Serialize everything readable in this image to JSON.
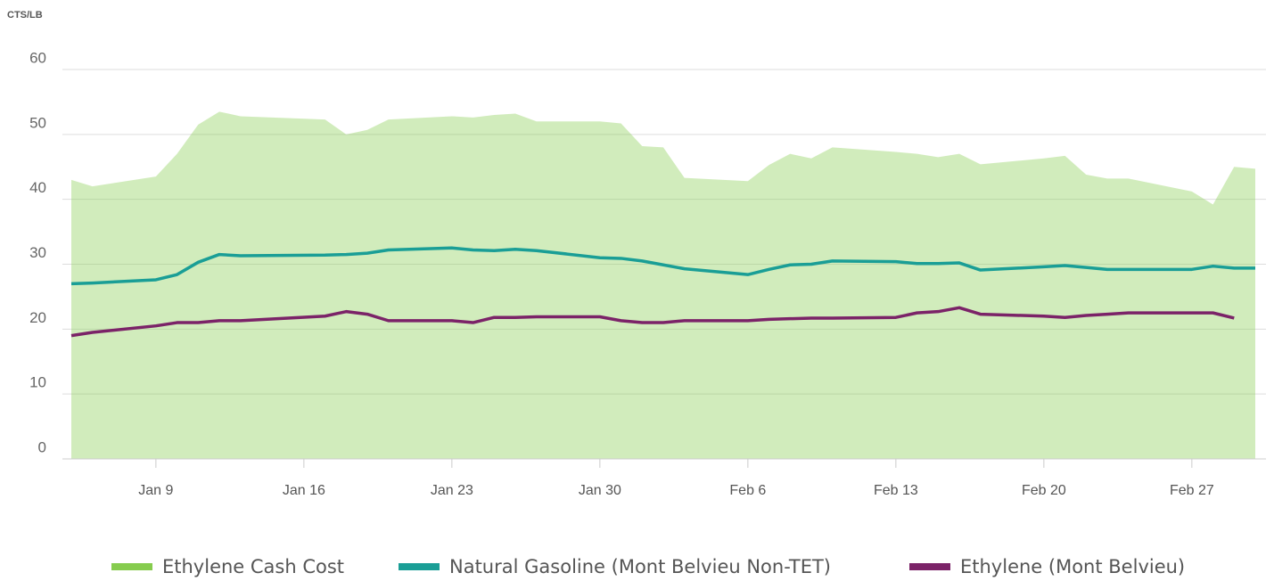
{
  "chart_data": {
    "type": "line",
    "y_label": "CTS/LB",
    "x": [
      "Jan 5",
      "Jan 6",
      "Jan 9",
      "Jan 10",
      "Jan 11",
      "Jan 12",
      "Jan 13",
      "Jan 17",
      "Jan 18",
      "Jan 19",
      "Jan 20",
      "Jan 23",
      "Jan 24",
      "Jan 25",
      "Jan 26",
      "Jan 27",
      "Jan 30",
      "Jan 31",
      "Feb 1",
      "Feb 2",
      "Feb 3",
      "Feb 6",
      "Feb 7",
      "Feb 8",
      "Feb 9",
      "Feb 10",
      "Feb 13",
      "Feb 14",
      "Feb 15",
      "Feb 16",
      "Feb 17",
      "Feb 20",
      "Feb 21",
      "Feb 22",
      "Feb 23",
      "Feb 24",
      "Feb 27",
      "Feb 28",
      "Mar 1",
      "Mar 2"
    ],
    "xlim": [
      "Jan 5",
      "Mar 2"
    ],
    "xticks": [
      "Jan 9",
      "Jan 16",
      "Jan 23",
      "Jan 30",
      "Feb 6",
      "Feb 13",
      "Feb 20",
      "Feb 27"
    ],
    "ylim": [
      0,
      60
    ],
    "yticks": [
      0,
      10,
      20,
      30,
      40,
      50,
      60
    ],
    "grid": true,
    "legend": "bottom",
    "series": [
      {
        "name": "Ethylene Cash Cost",
        "color": "#86cc4e",
        "kind": "area",
        "values": [
          43,
          42,
          43.5,
          47,
          51.5,
          53.5,
          52.8,
          52.3,
          50,
          50.7,
          52.3,
          52.8,
          52.6,
          53,
          53.2,
          52,
          52,
          51.7,
          48.2,
          48,
          43.3,
          42.8,
          45.3,
          47,
          46.3,
          48,
          47.3,
          47,
          46.5,
          47,
          45.4,
          46.3,
          46.7,
          43.8,
          43.2,
          43.2,
          41.2,
          39.2,
          45,
          44.7
        ]
      },
      {
        "name": "Natural Gasoline (Mont Belvieu Non-TET)",
        "color": "#1a9e96",
        "kind": "line",
        "values": [
          27,
          27.1,
          27.6,
          28.4,
          30.3,
          31.5,
          31.3,
          31.4,
          31.5,
          31.7,
          32.2,
          32.5,
          32.2,
          32.1,
          32.3,
          32.1,
          31,
          30.9,
          30.5,
          29.9,
          29.3,
          28.4,
          29.2,
          29.9,
          30,
          30.5,
          30.4,
          30.1,
          30.1,
          30.2,
          29.1,
          29.6,
          29.8,
          29.5,
          29.2,
          29.2,
          29.2,
          29.7,
          29.4,
          29.4
        ]
      },
      {
        "name": "Ethylene (Mont Belvieu)",
        "color": "#7b2368",
        "kind": "line",
        "values": [
          19,
          19.5,
          20.5,
          21,
          21,
          21.3,
          21.3,
          22,
          22.7,
          22.3,
          21.3,
          21.3,
          21,
          21.8,
          21.8,
          21.9,
          21.9,
          21.3,
          21,
          21,
          21.3,
          21.3,
          21.5,
          21.6,
          21.7,
          21.7,
          21.8,
          22.5,
          22.7,
          23.3,
          22.3,
          22,
          21.8,
          22.1,
          22.3,
          22.5,
          22.5,
          22.5,
          21.7,
          null
        ]
      }
    ]
  }
}
